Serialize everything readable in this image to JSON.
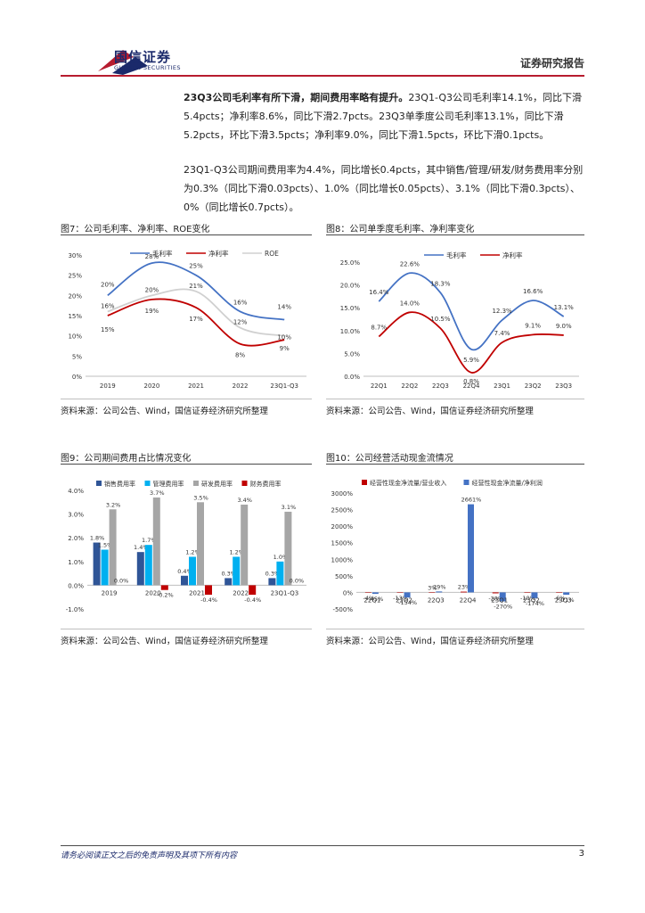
{
  "header": {
    "brand_cn": "国信证券",
    "brand_en": "GUOSEN SECURITIES",
    "report_type": "证券研究报告",
    "brand_colors": {
      "blue": "#1b2a6b",
      "red": "#b71c2f"
    }
  },
  "paragraphs": {
    "p1_bold": "23Q3公司毛利率有所下滑，期间费用率略有提升。",
    "p1_rest": "23Q1-Q3公司毛利率14.1%，同比下滑5.4pcts；净利率8.6%，同比下滑2.7pcts。23Q3单季度公司毛利率13.1%，同比下滑5.2pcts，环比下滑3.5pcts；净利率9.0%，同比下滑1.5pcts，环比下滑0.1pcts。",
    "p2": "23Q1-Q3公司期间费用率为4.4%，同比增长0.4pcts，其中销售/管理/研发/财务费用率分别为0.3%（同比下滑0.03pcts）、1.0%（同比增长0.05pcts）、3.1%（同比下滑0.3pcts）、0%（同比增长0.7pcts）。"
  },
  "figures": {
    "fig7": {
      "title": "图7：公司毛利率、净利率、ROE变化",
      "source": "资料来源：公司公告、Wind，国信证券经济研究所整理"
    },
    "fig8": {
      "title": "图8：公司单季度毛利率、净利率变化",
      "source": "资料来源：公司公告、Wind，国信证券经济研究所整理"
    },
    "fig9": {
      "title": "图9：公司期间费用占比情况变化",
      "source": "资料来源：公司公告、Wind，国信证券经济研究所整理"
    },
    "fig10": {
      "title": "图10：公司经营活动现金流情况",
      "source": "资料来源：公司公告、Wind，国信证券经济研究所整理"
    }
  },
  "chart_data": [
    {
      "id": "fig7",
      "type": "line",
      "title": "",
      "categories": [
        "2019",
        "2020",
        "2021",
        "2022",
        "23Q1-Q3"
      ],
      "ylim": [
        0,
        30
      ],
      "yticks": [
        "0%",
        "5%",
        "10%",
        "15%",
        "20%",
        "25%",
        "30%"
      ],
      "legend": "top",
      "series": [
        {
          "name": "毛利率",
          "color": "#4472c4",
          "values": [
            20,
            28,
            25,
            16,
            14
          ],
          "labels": [
            "20%",
            "28%",
            "25%",
            "16%",
            "14%"
          ]
        },
        {
          "name": "净利率",
          "color": "#c00000",
          "values": [
            15,
            19,
            17,
            8,
            9
          ],
          "labels": [
            "15%",
            "19%",
            "17%",
            "8%",
            "9%"
          ]
        },
        {
          "name": "ROE",
          "color": "#d0d0d0",
          "values": [
            16,
            20,
            21,
            12,
            10
          ],
          "labels": [
            "16%",
            "20%",
            "21%",
            "12%",
            "10%"
          ]
        }
      ]
    },
    {
      "id": "fig8",
      "type": "line",
      "title": "",
      "categories": [
        "22Q1",
        "22Q2",
        "22Q3",
        "22Q4",
        "23Q1",
        "23Q2",
        "23Q3"
      ],
      "ylim": [
        0,
        25
      ],
      "yticks": [
        "0.0%",
        "5.0%",
        "10.0%",
        "15.0%",
        "20.0%",
        "25.0%"
      ],
      "legend": "top",
      "series": [
        {
          "name": "毛利率",
          "color": "#4472c4",
          "values": [
            16.4,
            22.6,
            18.3,
            5.9,
            12.3,
            16.6,
            13.1
          ],
          "labels": [
            "16.4%",
            "22.6%",
            "18.3%",
            "5.9%",
            "12.3%",
            "16.6%",
            "13.1%"
          ]
        },
        {
          "name": "净利率",
          "color": "#c00000",
          "values": [
            8.7,
            14.0,
            10.5,
            0.8,
            7.4,
            9.1,
            9.0
          ],
          "labels": [
            "8.7%",
            "14.0%",
            "10.5%",
            "0.8%",
            "7.4%",
            "9.1%",
            "9.0%"
          ]
        }
      ]
    },
    {
      "id": "fig9",
      "type": "bar",
      "title": "",
      "categories": [
        "2019",
        "2020",
        "2021",
        "2022",
        "23Q1-Q3"
      ],
      "ylim": [
        -1,
        4
      ],
      "yticks": [
        "-1.0%",
        "0.0%",
        "1.0%",
        "2.0%",
        "3.0%",
        "4.0%"
      ],
      "legend": "top",
      "series": [
        {
          "name": "销售费用率",
          "color": "#2f5597",
          "values": [
            1.8,
            1.4,
            0.4,
            0.3,
            0.3
          ],
          "labels": [
            "1.8%",
            "1.4%",
            "0.4%",
            "0.3%",
            "0.3%"
          ]
        },
        {
          "name": "管理费用率",
          "color": "#00b0f0",
          "values": [
            1.5,
            1.7,
            1.2,
            1.2,
            1.0
          ],
          "labels": [
            "1.5%",
            "1.7%",
            "1.2%",
            "1.2%",
            "1.0%"
          ]
        },
        {
          "name": "研发费用率",
          "color": "#a6a6a6",
          "values": [
            3.2,
            3.7,
            3.5,
            3.4,
            3.1
          ],
          "labels": [
            "3.2%",
            "3.7%",
            "3.5%",
            "3.4%",
            "3.1%"
          ]
        },
        {
          "name": "财务费用率",
          "color": "#c00000",
          "values": [
            0.0,
            -0.2,
            -0.4,
            -0.4,
            0.0
          ],
          "labels": [
            "0.0%",
            "-0.2%",
            "-0.4%",
            "-0.4%",
            "0.0%"
          ]
        }
      ]
    },
    {
      "id": "fig10",
      "type": "bar",
      "title": "",
      "categories": [
        "22Q1",
        "22Q2",
        "22Q3",
        "22Q4",
        "23Q1",
        "23Q2",
        "23Q3"
      ],
      "ylim": [
        -500,
        3000
      ],
      "yticks": [
        "-500%",
        "0%",
        "500%",
        "1000%",
        "1500%",
        "2000%",
        "2500%",
        "3000%"
      ],
      "legend": "top",
      "series": [
        {
          "name": "经营性现金净流量/营业收入",
          "color": "#c00000",
          "values": [
            -4,
            -13,
            3,
            23,
            -28,
            -10,
            -6
          ],
          "labels": [
            "-4%",
            "-13%",
            "3%",
            "23%",
            "-28%",
            "-10%",
            "-6%"
          ]
        },
        {
          "name": "经营性现金净流量/净利润",
          "color": "#4472c4",
          "values": [
            -45,
            -154,
            29,
            2661,
            -270,
            -174,
            -71
          ],
          "labels": [
            "-45%",
            "-154%",
            "29%",
            "2661%",
            "-270%",
            "-174%",
            "-71%"
          ]
        }
      ]
    }
  ],
  "footer": {
    "disclaimer": "请务必阅读正文之后的免责声明及其项下所有内容",
    "page": "3"
  }
}
